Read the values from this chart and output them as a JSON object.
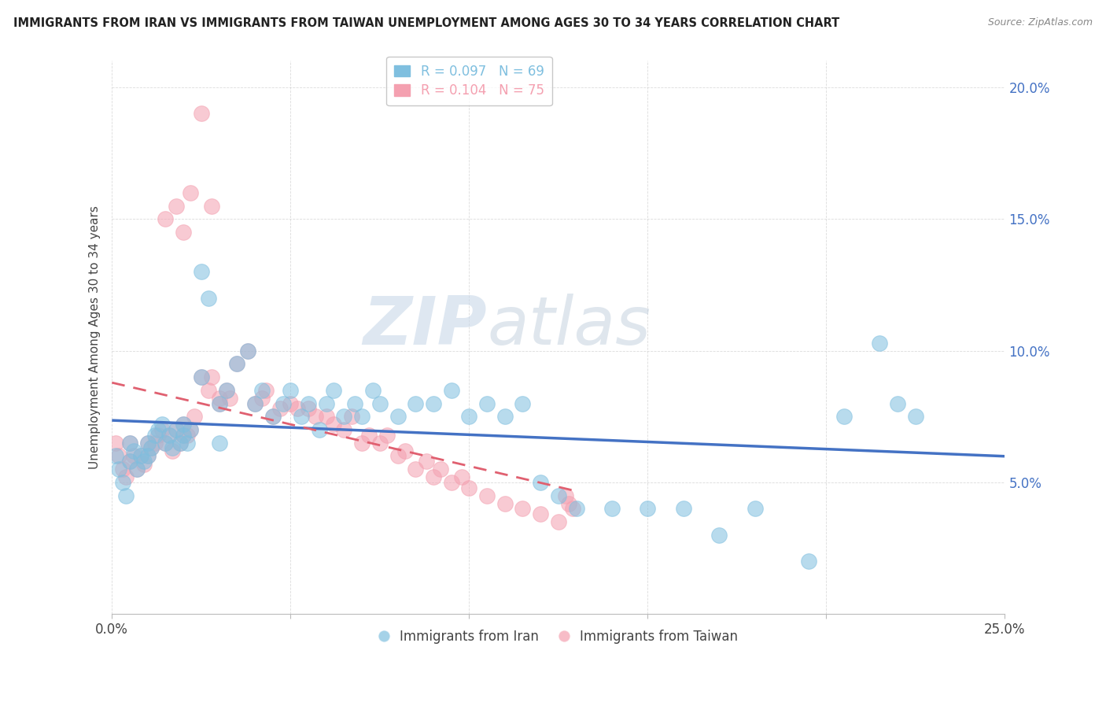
{
  "title": "IMMIGRANTS FROM IRAN VS IMMIGRANTS FROM TAIWAN UNEMPLOYMENT AMONG AGES 30 TO 34 YEARS CORRELATION CHART",
  "source": "Source: ZipAtlas.com",
  "ylabel": "Unemployment Among Ages 30 to 34 years",
  "xlim": [
    0.0,
    0.25
  ],
  "ylim": [
    0.0,
    0.21
  ],
  "iran_color": "#7fbfdf",
  "taiwan_color": "#f4a0b0",
  "iran_R": 0.097,
  "iran_N": 69,
  "taiwan_R": 0.104,
  "taiwan_N": 75,
  "watermark_zip": "ZIP",
  "watermark_atlas": "atlas",
  "background_color": "#ffffff",
  "grid_color": "#cccccc",
  "iran_x": [
    0.001,
    0.002,
    0.003,
    0.004,
    0.005,
    0.005,
    0.006,
    0.007,
    0.008,
    0.009,
    0.01,
    0.01,
    0.011,
    0.012,
    0.013,
    0.014,
    0.015,
    0.016,
    0.017,
    0.018,
    0.019,
    0.02,
    0.02,
    0.021,
    0.022,
    0.025,
    0.025,
    0.027,
    0.03,
    0.03,
    0.032,
    0.035,
    0.038,
    0.04,
    0.042,
    0.045,
    0.048,
    0.05,
    0.053,
    0.055,
    0.058,
    0.06,
    0.062,
    0.065,
    0.068,
    0.07,
    0.073,
    0.075,
    0.08,
    0.085,
    0.09,
    0.095,
    0.1,
    0.105,
    0.11,
    0.115,
    0.12,
    0.125,
    0.13,
    0.14,
    0.15,
    0.16,
    0.17,
    0.18,
    0.195,
    0.205,
    0.215,
    0.22,
    0.225
  ],
  "iran_y": [
    0.06,
    0.055,
    0.05,
    0.045,
    0.065,
    0.058,
    0.062,
    0.055,
    0.06,
    0.058,
    0.065,
    0.06,
    0.063,
    0.068,
    0.07,
    0.072,
    0.065,
    0.068,
    0.063,
    0.07,
    0.065,
    0.068,
    0.072,
    0.065,
    0.07,
    0.09,
    0.13,
    0.12,
    0.065,
    0.08,
    0.085,
    0.095,
    0.1,
    0.08,
    0.085,
    0.075,
    0.08,
    0.085,
    0.075,
    0.08,
    0.07,
    0.08,
    0.085,
    0.075,
    0.08,
    0.075,
    0.085,
    0.08,
    0.075,
    0.08,
    0.08,
    0.085,
    0.075,
    0.08,
    0.075,
    0.08,
    0.05,
    0.045,
    0.04,
    0.04,
    0.04,
    0.04,
    0.03,
    0.04,
    0.02,
    0.075,
    0.103,
    0.08,
    0.075
  ],
  "taiwan_x": [
    0.001,
    0.002,
    0.003,
    0.004,
    0.005,
    0.005,
    0.006,
    0.007,
    0.008,
    0.009,
    0.01,
    0.01,
    0.011,
    0.012,
    0.013,
    0.014,
    0.015,
    0.016,
    0.017,
    0.018,
    0.019,
    0.02,
    0.02,
    0.021,
    0.022,
    0.023,
    0.025,
    0.027,
    0.028,
    0.03,
    0.03,
    0.032,
    0.033,
    0.035,
    0.038,
    0.04,
    0.042,
    0.043,
    0.045,
    0.047,
    0.05,
    0.052,
    0.055,
    0.057,
    0.06,
    0.062,
    0.065,
    0.067,
    0.07,
    0.072,
    0.075,
    0.077,
    0.08,
    0.082,
    0.085,
    0.088,
    0.09,
    0.092,
    0.095,
    0.098,
    0.1,
    0.105,
    0.11,
    0.115,
    0.12,
    0.125,
    0.127,
    0.128,
    0.129,
    0.025,
    0.028,
    0.022,
    0.018,
    0.015,
    0.02
  ],
  "taiwan_y": [
    0.065,
    0.06,
    0.055,
    0.052,
    0.065,
    0.058,
    0.06,
    0.055,
    0.06,
    0.057,
    0.065,
    0.06,
    0.063,
    0.065,
    0.068,
    0.07,
    0.065,
    0.068,
    0.062,
    0.07,
    0.065,
    0.068,
    0.072,
    0.068,
    0.07,
    0.075,
    0.09,
    0.085,
    0.09,
    0.08,
    0.082,
    0.085,
    0.082,
    0.095,
    0.1,
    0.08,
    0.082,
    0.085,
    0.075,
    0.078,
    0.08,
    0.078,
    0.078,
    0.075,
    0.075,
    0.072,
    0.07,
    0.075,
    0.065,
    0.068,
    0.065,
    0.068,
    0.06,
    0.062,
    0.055,
    0.058,
    0.052,
    0.055,
    0.05,
    0.052,
    0.048,
    0.045,
    0.042,
    0.04,
    0.038,
    0.035,
    0.045,
    0.042,
    0.04,
    0.19,
    0.155,
    0.16,
    0.155,
    0.15,
    0.145
  ]
}
